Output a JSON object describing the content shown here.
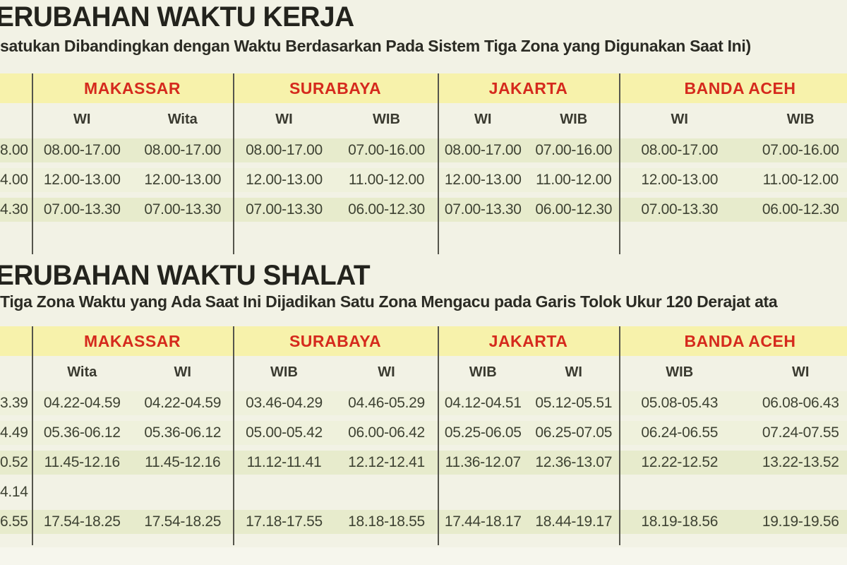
{
  "colors": {
    "page_bg": "#f2f2e5",
    "header_band": "#f7f2ab",
    "stripe_green": "#e7ebcc",
    "stripe_light": "#eff1dc",
    "city_red": "#d52a1d",
    "title_ink": "#23231d",
    "value_ink": "#3e4233",
    "divider": "#55554c"
  },
  "sections": [
    {
      "title": "ERUBAHAN WAKTU KERJA",
      "subtitle": "satukan Dibandingkan dengan Waktu Berdasarkan Pada Sistem Tiga Zona yang Digunakan Saat Ini)",
      "table": {
        "stub_values": [
          "8.00",
          "4.00",
          "4.30"
        ],
        "groups": [
          {
            "city": "MAKASSAR",
            "cols": [
              "WI",
              "Wita"
            ],
            "rows": [
              [
                "08.00-17.00",
                "08.00-17.00"
              ],
              [
                "12.00-13.00",
                "12.00-13.00"
              ],
              [
                "07.00-13.30",
                "07.00-13.30"
              ]
            ]
          },
          {
            "city": "SURABAYA",
            "cols": [
              "WI",
              "WIB"
            ],
            "rows": [
              [
                "08.00-17.00",
                "07.00-16.00"
              ],
              [
                "12.00-13.00",
                "11.00-12.00"
              ],
              [
                "07.00-13.30",
                "06.00-12.30"
              ]
            ]
          },
          {
            "city": "JAKARTA",
            "cols": [
              "WI",
              "WIB"
            ],
            "rows": [
              [
                "08.00-17.00",
                "07.00-16.00"
              ],
              [
                "12.00-13.00",
                "11.00-12.00"
              ],
              [
                "07.00-13.30",
                "06.00-12.30"
              ]
            ]
          },
          {
            "city": "BANDA ACEH",
            "cols": [
              "WI",
              "WIB"
            ],
            "rows": [
              [
                "08.00-17.00",
                "07.00-16.00"
              ],
              [
                "12.00-13.00",
                "11.00-12.00"
              ],
              [
                "07.00-13.30",
                "06.00-12.30"
              ]
            ]
          }
        ]
      }
    },
    {
      "title": "ERUBAHAN WAKTU SHALAT",
      "subtitle": "Tiga Zona Waktu yang Ada Saat Ini Dijadikan Satu Zona Mengacu pada Garis Tolok Ukur 120 Derajat ata",
      "table": {
        "stub_values": [
          "3.39",
          "4.49",
          "0.52",
          "4.14",
          "6.55"
        ],
        "groups": [
          {
            "city": "MAKASSAR",
            "cols": [
              "Wita",
              "WI"
            ],
            "rows": [
              [
                "04.22-04.59",
                "04.22-04.59"
              ],
              [
                "05.36-06.12",
                "05.36-06.12"
              ],
              [
                "11.45-12.16",
                "11.45-12.16"
              ],
              [
                "",
                ""
              ],
              [
                "17.54-18.25",
                "17.54-18.25"
              ]
            ]
          },
          {
            "city": "SURABAYA",
            "cols": [
              "WIB",
              "WI"
            ],
            "rows": [
              [
                "03.46-04.29",
                "04.46-05.29"
              ],
              [
                "05.00-05.42",
                "06.00-06.42"
              ],
              [
                "11.12-11.41",
                "12.12-12.41"
              ],
              [
                "",
                ""
              ],
              [
                "17.18-17.55",
                "18.18-18.55"
              ]
            ]
          },
          {
            "city": "JAKARTA",
            "cols": [
              "WIB",
              "WI"
            ],
            "rows": [
              [
                "04.12-04.51",
                "05.12-05.51"
              ],
              [
                "05.25-06.05",
                "06.25-07.05"
              ],
              [
                "11.36-12.07",
                "12.36-13.07"
              ],
              [
                "",
                ""
              ],
              [
                "17.44-18.17",
                "18.44-19.17"
              ]
            ]
          },
          {
            "city": "BANDA ACEH",
            "cols": [
              "WIB",
              "WI"
            ],
            "rows": [
              [
                "05.08-05.43",
                "06.08-06.43"
              ],
              [
                "06.24-06.55",
                "07.24-07.55"
              ],
              [
                "12.22-12.52",
                "13.22-13.52"
              ],
              [
                "",
                ""
              ],
              [
                "18.19-18.56",
                "19.19-19.56"
              ]
            ]
          }
        ]
      }
    }
  ]
}
